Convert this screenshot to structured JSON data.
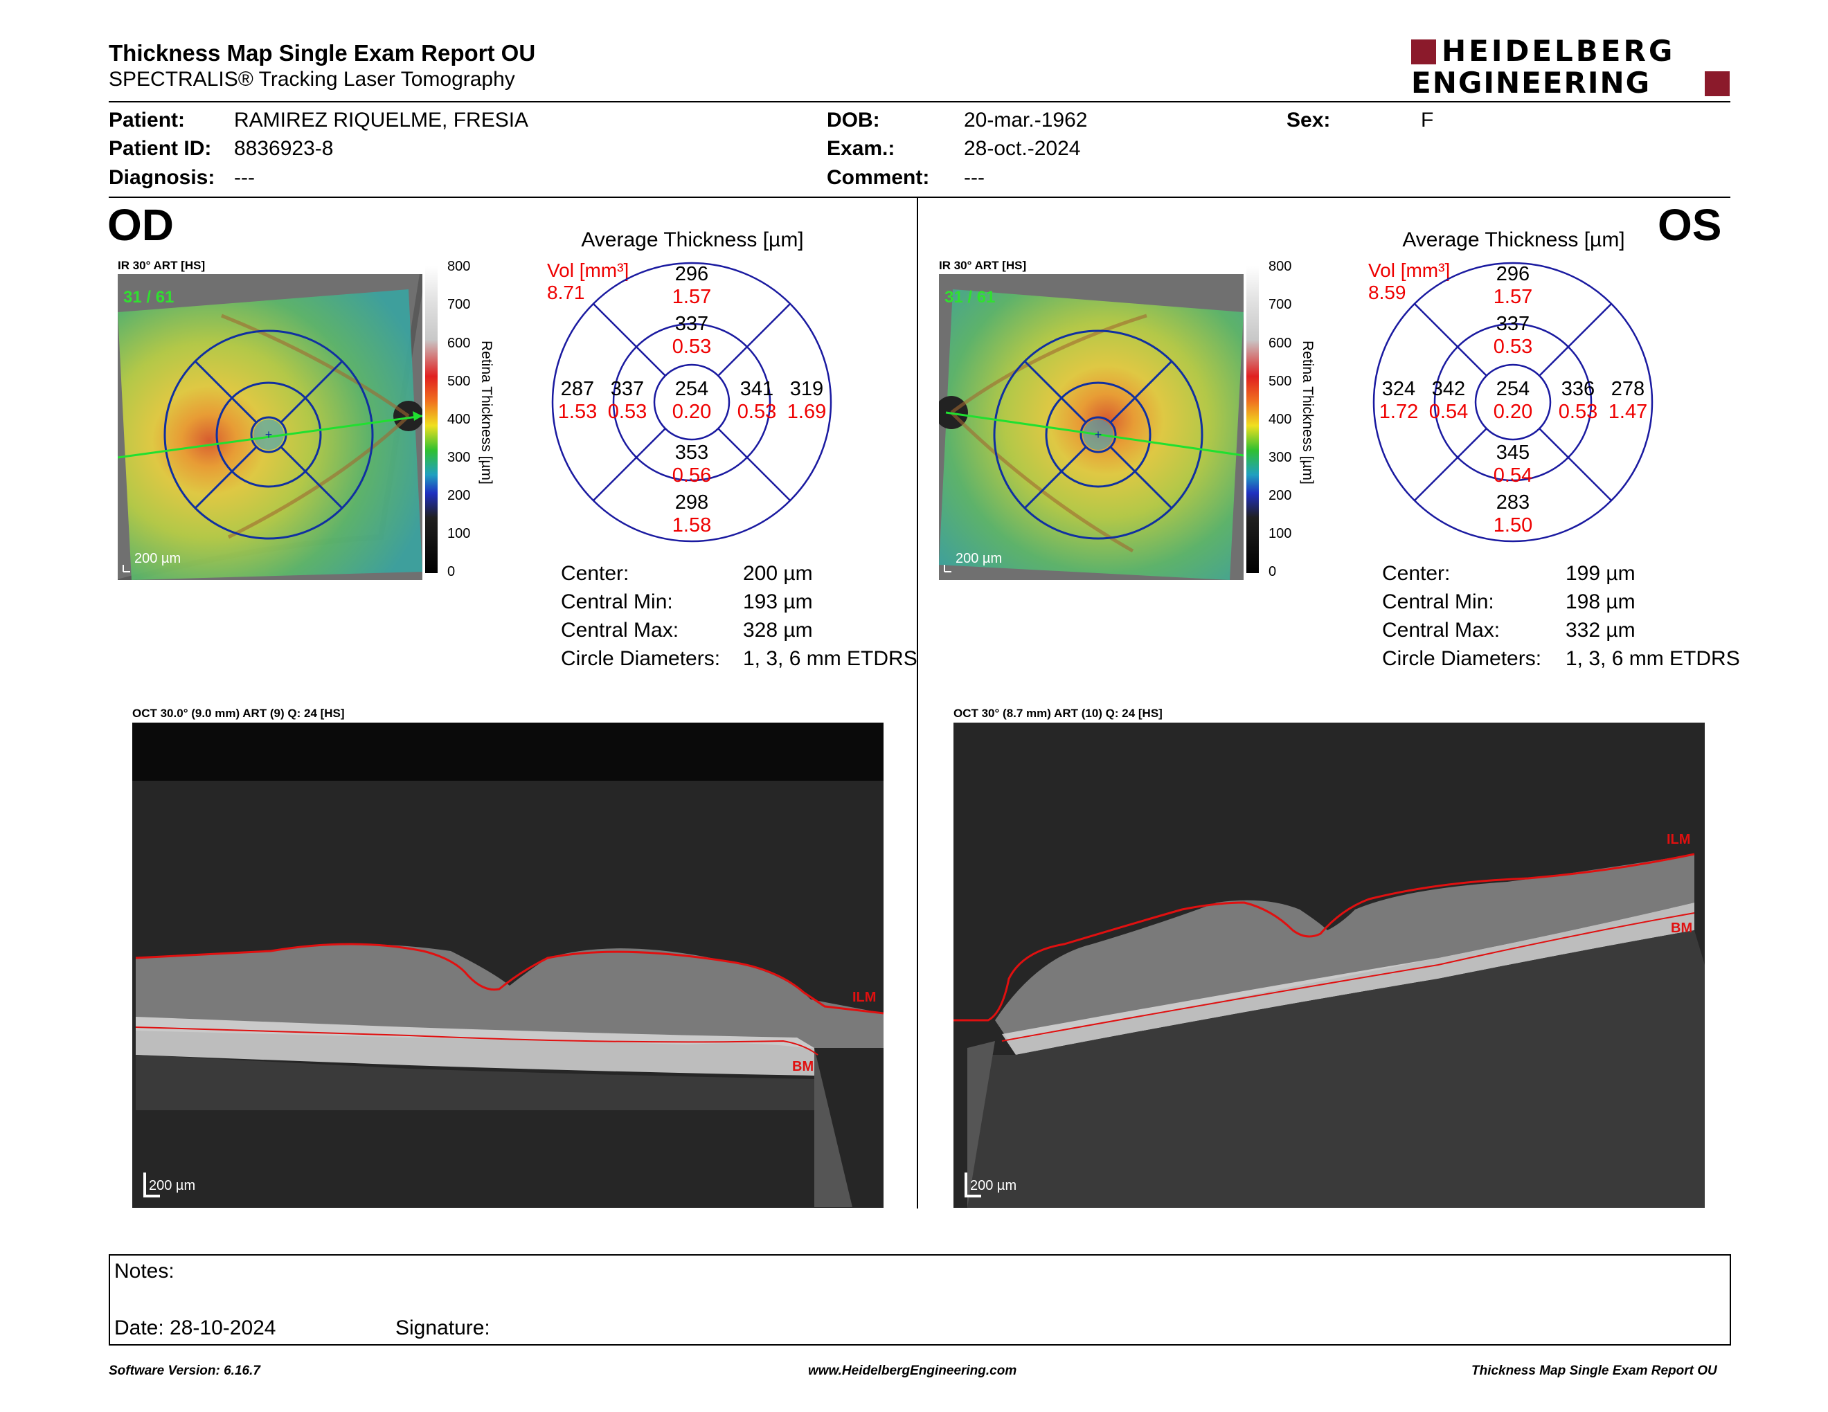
{
  "header": {
    "title": "Thickness Map Single Exam Report OU",
    "subtitle": "SPECTRALIS® Tracking Laser Tomography",
    "logo_line1": "HEIDELBERG",
    "logo_line2": "ENGINEERING",
    "brand_color": "#8b1a2b"
  },
  "patient": {
    "patient_label": "Patient:",
    "patient_value": "RAMIREZ RIQUELME, FRESIA",
    "id_label": "Patient ID:",
    "id_value": "8836923-8",
    "diagnosis_label": "Diagnosis:",
    "diagnosis_value": "---",
    "dob_label": "DOB:",
    "dob_value": "20-mar.-1962",
    "exam_label": "Exam.:",
    "exam_value": "28-oct.-2024",
    "comment_label": "Comment:",
    "comment_value": "---",
    "sex_label": "Sex:",
    "sex_value": "F"
  },
  "od": {
    "eye_label": "OD",
    "fundus_header": "IR 30° ART [HS]",
    "fundus_counter": "31 / 61",
    "fundus_scale": "200 µm",
    "colorbar_ticks": [
      "800",
      "700",
      "600",
      "500",
      "400",
      "300",
      "200",
      "100",
      "0"
    ],
    "colorbar_label": "Retina  Thickness [µm]",
    "avg_title": "Average Thickness [µm]",
    "vol_label": "Vol [mm³]",
    "vol_value": "8.71",
    "etdrs": {
      "outer_sup": {
        "t": "296",
        "v": "1.57"
      },
      "inner_sup": {
        "t": "337",
        "v": "0.53"
      },
      "outer_left": {
        "t": "287",
        "v": "1.53"
      },
      "inner_left": {
        "t": "337",
        "v": "0.53"
      },
      "center": {
        "t": "254",
        "v": "0.20"
      },
      "inner_right": {
        "t": "341",
        "v": "0.53"
      },
      "outer_right": {
        "t": "319",
        "v": "1.69"
      },
      "inner_inf": {
        "t": "353",
        "v": "0.56"
      },
      "outer_inf": {
        "t": "298",
        "v": "1.58"
      }
    },
    "stats": {
      "center_label": "Center:",
      "center_value": "200 µm",
      "min_label": "Central Min:",
      "min_value": "193 µm",
      "max_label": "Central Max:",
      "max_value": "328 µm",
      "circ_label": "Circle Diameters:",
      "circ_value": "1, 3, 6 mm ETDRS"
    },
    "oct_header": "OCT 30.0° (9.0 mm) ART (9) Q: 24 [HS]",
    "oct_scale": "200 µm",
    "ilm": "ILM",
    "bm": "BM"
  },
  "os": {
    "eye_label": "OS",
    "fundus_header": "IR 30° ART [HS]",
    "fundus_counter": "31 / 61",
    "fundus_scale": "200 µm",
    "colorbar_ticks": [
      "800",
      "700",
      "600",
      "500",
      "400",
      "300",
      "200",
      "100",
      "0"
    ],
    "colorbar_label": "Retina  Thickness [µm]",
    "avg_title": "Average Thickness [µm]",
    "vol_label": "Vol [mm³]",
    "vol_value": "8.59",
    "etdrs": {
      "outer_sup": {
        "t": "296",
        "v": "1.57"
      },
      "inner_sup": {
        "t": "337",
        "v": "0.53"
      },
      "outer_left": {
        "t": "324",
        "v": "1.72"
      },
      "inner_left": {
        "t": "342",
        "v": "0.54"
      },
      "center": {
        "t": "254",
        "v": "0.20"
      },
      "inner_right": {
        "t": "336",
        "v": "0.53"
      },
      "outer_right": {
        "t": "278",
        "v": "1.47"
      },
      "inner_inf": {
        "t": "345",
        "v": "0.54"
      },
      "outer_inf": {
        "t": "283",
        "v": "1.50"
      }
    },
    "stats": {
      "center_label": "Center:",
      "center_value": "199 µm",
      "min_label": "Central Min:",
      "min_value": "198 µm",
      "max_label": "Central Max:",
      "max_value": "332 µm",
      "circ_label": "Circle Diameters:",
      "circ_value": "1, 3, 6 mm ETDRS"
    },
    "oct_header": "OCT 30° (8.7 mm) ART (10) Q: 24 [HS]",
    "oct_scale": "200 µm",
    "ilm": "ILM",
    "bm": "BM"
  },
  "notes": {
    "notes_label": "Notes:",
    "date_label": "Date: 28-10-2024",
    "signature_label": "Signature:"
  },
  "footer": {
    "software": "Software Version: 6.16.7",
    "website": "www.HeidelbergEngineering.com",
    "report": "Thickness Map Single Exam Report OU"
  }
}
